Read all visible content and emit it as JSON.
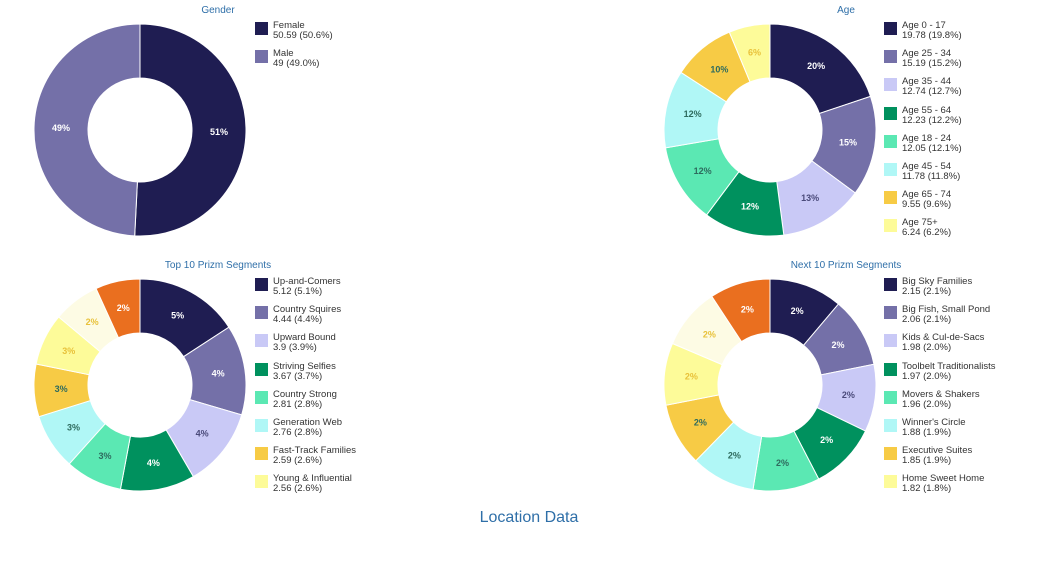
{
  "colors": {
    "navy": "#1f1d52",
    "slate": "#7470a8",
    "lavender": "#c9c9f6",
    "green": "#00915e",
    "mint": "#5be8b3",
    "cyan": "#b0f7f6",
    "mustard": "#f7cb45",
    "lightyellow": "#fdfb99",
    "cream": "#fdfbe4",
    "orange": "#ea6f1f",
    "title_blue": "#2f6fa8"
  },
  "footer": {
    "title": "Location Data"
  },
  "chart_data": [
    {
      "type": "pie",
      "title": "Gender",
      "slices": [
        {
          "label": "Female",
          "value": 50.59,
          "legend_value": "50.59 (50.6%)",
          "pct_label": "51%",
          "color": "#1f1d52"
        },
        {
          "label": "Male",
          "value": 49,
          "legend_value": "49 (49.0%)",
          "pct_label": "49%",
          "color": "#7470a8"
        }
      ]
    },
    {
      "type": "pie",
      "title": "Age",
      "slices": [
        {
          "label": "Age 0 - 17",
          "value": 19.78,
          "legend_value": "19.78 (19.8%)",
          "pct_label": "20%",
          "color": "#1f1d52"
        },
        {
          "label": "Age 25 - 34",
          "value": 15.19,
          "legend_value": "15.19 (15.2%)",
          "pct_label": "15%",
          "color": "#7470a8"
        },
        {
          "label": "Age 35 - 44",
          "value": 12.74,
          "legend_value": "12.74 (12.7%)",
          "pct_label": "13%",
          "color": "#c9c9f6"
        },
        {
          "label": "Age 55 - 64",
          "value": 12.23,
          "legend_value": "12.23 (12.2%)",
          "pct_label": "12%",
          "color": "#00915e"
        },
        {
          "label": "Age 18 - 24",
          "value": 12.05,
          "legend_value": "12.05 (12.1%)",
          "pct_label": "12%",
          "color": "#5be8b3"
        },
        {
          "label": "Age 45 - 54",
          "value": 11.78,
          "legend_value": "11.78 (11.8%)",
          "pct_label": "12%",
          "color": "#b0f7f6"
        },
        {
          "label": "Age 65 - 74",
          "value": 9.55,
          "legend_value": "9.55 (9.6%)",
          "pct_label": "10%",
          "color": "#f7cb45"
        },
        {
          "label": "Age 75+",
          "value": 6.24,
          "legend_value": "6.24 (6.2%)",
          "pct_label": "6%",
          "color": "#fdfb99"
        }
      ]
    },
    {
      "type": "pie",
      "title": "Top 10 Prizm Segments",
      "slices": [
        {
          "label": "Up-and-Comers",
          "value": 5.12,
          "legend_value": "5.12 (5.1%)",
          "pct_label": "5%",
          "color": "#1f1d52"
        },
        {
          "label": "Country Squires",
          "value": 4.44,
          "legend_value": "4.44 (4.4%)",
          "pct_label": "4%",
          "color": "#7470a8"
        },
        {
          "label": "Upward Bound",
          "value": 3.9,
          "legend_value": "3.9 (3.9%)",
          "pct_label": "4%",
          "color": "#c9c9f6"
        },
        {
          "label": "Striving Selfies",
          "value": 3.67,
          "legend_value": "3.67 (3.7%)",
          "pct_label": "4%",
          "color": "#00915e"
        },
        {
          "label": "Country Strong",
          "value": 2.81,
          "legend_value": "2.81 (2.8%)",
          "pct_label": "3%",
          "color": "#5be8b3"
        },
        {
          "label": "Generation Web",
          "value": 2.76,
          "legend_value": "2.76 (2.8%)",
          "pct_label": "3%",
          "color": "#b0f7f6"
        },
        {
          "label": "Fast-Track Families",
          "value": 2.59,
          "legend_value": "2.59 (2.6%)",
          "pct_label": "3%",
          "color": "#f7cb45"
        },
        {
          "label": "Young & Influential",
          "value": 2.56,
          "legend_value": "2.56 (2.6%)",
          "pct_label": "3%",
          "color": "#fdfb99"
        },
        {
          "label": "",
          "value": 2.3,
          "legend_value": "",
          "pct_label": "2%",
          "color": "#fdfbe4"
        },
        {
          "label": "",
          "value": 2.2,
          "legend_value": "",
          "pct_label": "2%",
          "color": "#ea6f1f"
        }
      ]
    },
    {
      "type": "pie",
      "title": "Next 10 Prizm Segments",
      "slices": [
        {
          "label": "Big Sky Families",
          "value": 2.15,
          "legend_value": "2.15 (2.1%)",
          "pct_label": "2%",
          "color": "#1f1d52"
        },
        {
          "label": "Big Fish, Small Pond",
          "value": 2.06,
          "legend_value": "2.06 (2.1%)",
          "pct_label": "2%",
          "color": "#7470a8"
        },
        {
          "label": "Kids & Cul-de-Sacs",
          "value": 1.98,
          "legend_value": "1.98 (2.0%)",
          "pct_label": "2%",
          "color": "#c9c9f6"
        },
        {
          "label": "Toolbelt Traditionalists",
          "value": 1.97,
          "legend_value": "1.97 (2.0%)",
          "pct_label": "2%",
          "color": "#00915e"
        },
        {
          "label": "Movers & Shakers",
          "value": 1.96,
          "legend_value": "1.96 (2.0%)",
          "pct_label": "2%",
          "color": "#5be8b3"
        },
        {
          "label": "Winner's Circle",
          "value": 1.88,
          "legend_value": "1.88 (1.9%)",
          "pct_label": "2%",
          "color": "#b0f7f6"
        },
        {
          "label": "Executive Suites",
          "value": 1.85,
          "legend_value": "1.85 (1.9%)",
          "pct_label": "2%",
          "color": "#f7cb45"
        },
        {
          "label": "Home Sweet Home",
          "value": 1.82,
          "legend_value": "1.82 (1.8%)",
          "pct_label": "2%",
          "color": "#fdfb99"
        },
        {
          "label": "",
          "value": 1.8,
          "legend_value": "",
          "pct_label": "2%",
          "color": "#fdfbe4"
        },
        {
          "label": "",
          "value": 1.78,
          "legend_value": "",
          "pct_label": "2%",
          "color": "#ea6f1f"
        }
      ]
    }
  ]
}
